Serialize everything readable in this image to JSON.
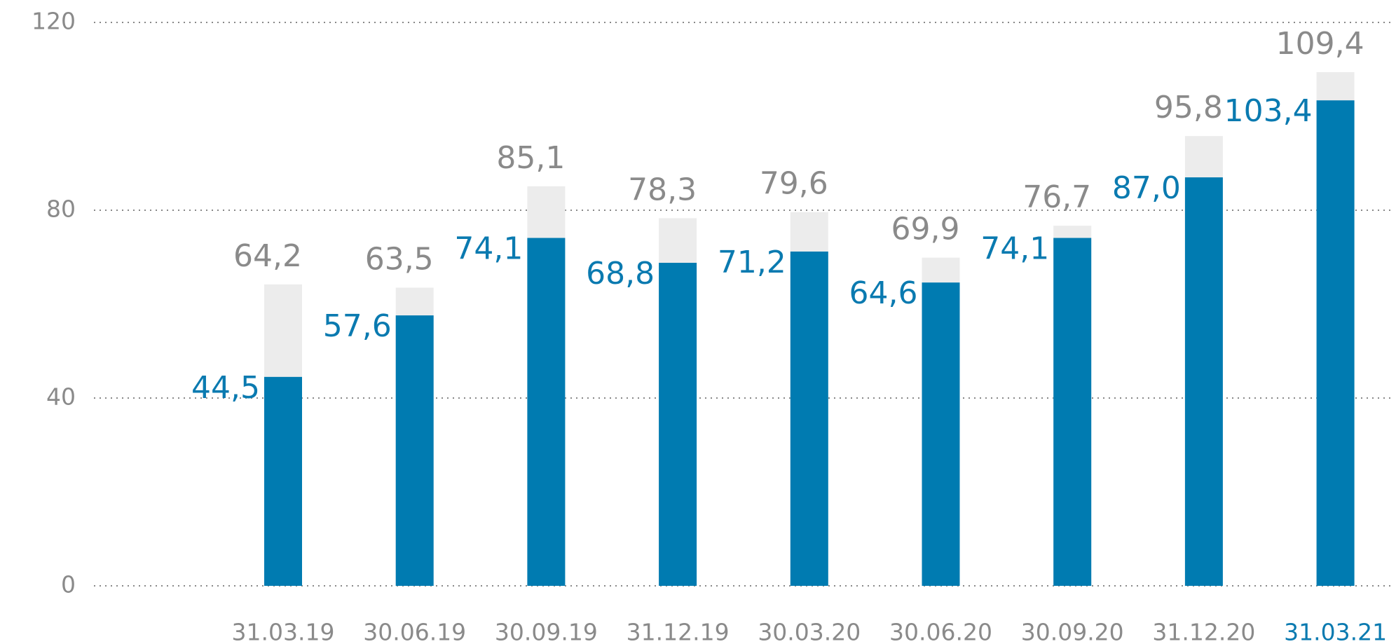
{
  "chart_data": {
    "type": "bar",
    "categories": [
      "31.03.19",
      "30.06.19",
      "30.09.19",
      "31.12.19",
      "30.03.20",
      "30.06.20",
      "30.09.20",
      "31.12.20",
      "31.03.21"
    ],
    "category_label_colors": [
      "#8a8a8a",
      "#8a8a8a",
      "#8a8a8a",
      "#8a8a8a",
      "#8a8a8a",
      "#8a8a8a",
      "#8a8a8a",
      "#8a8a8a",
      "#0a7ab0"
    ],
    "series": [
      {
        "color": "#ececec",
        "label_color": "#8a8a8a",
        "values": [
          64.2,
          63.5,
          85.1,
          78.3,
          79.6,
          69.9,
          76.7,
          95.8,
          109.4
        ],
        "value_labels": [
          "64,2",
          "63,5",
          "85,1",
          "78,3",
          "79,6",
          "69,9",
          "76,7",
          "95,8",
          "109,4"
        ]
      },
      {
        "color": "#007bb1",
        "label_color": "#0a7ab0",
        "values": [
          44.5,
          57.6,
          74.1,
          68.8,
          71.2,
          64.6,
          74.1,
          87.0,
          103.4
        ],
        "value_labels": [
          "44,5",
          "57,6",
          "74,1",
          "68,8",
          "71,2",
          "64,6",
          "74,1",
          "87,0",
          "103,4"
        ]
      }
    ],
    "ylim": [
      0,
      120
    ],
    "yticks": [
      0,
      40,
      80,
      120
    ],
    "grid": true
  }
}
